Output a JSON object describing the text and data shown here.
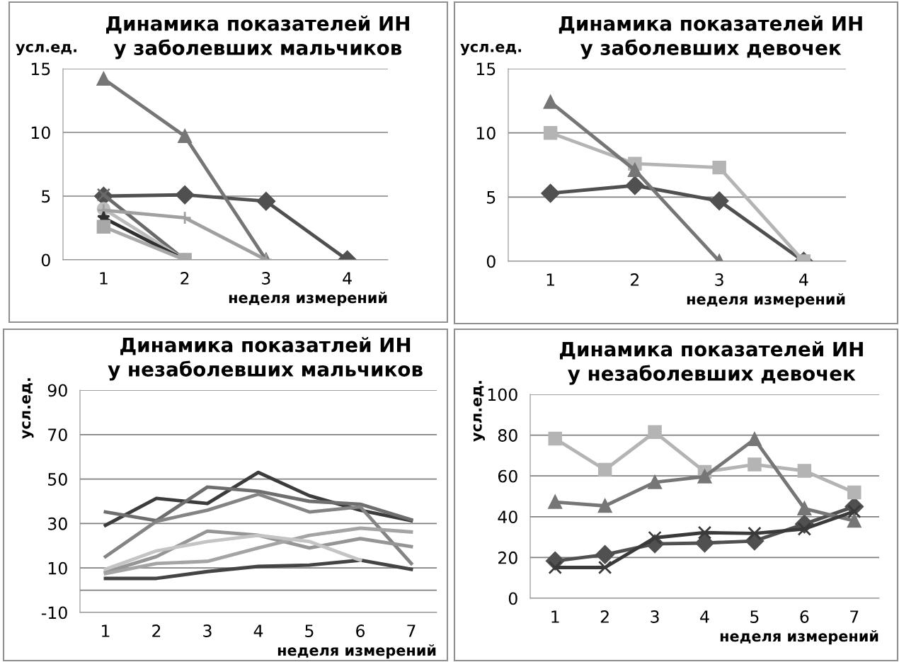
{
  "chart_data": [
    {
      "type": "line",
      "title": "Динамика показателей ИН\nу заболевших мальчиков",
      "ylabel": "усл.ед.",
      "xlabel": "неделя измерений",
      "categories": [
        "1",
        "2",
        "3",
        "4"
      ],
      "ylim": [
        0,
        15
      ],
      "yticks": [
        0,
        5,
        10,
        15
      ],
      "grid": "y",
      "legend": false,
      "line_style": "solid",
      "series": [
        {
          "color": "#505050",
          "marker": "diamond",
          "values": [
            5.0,
            5.1,
            4.6,
            0
          ]
        },
        {
          "color": "#767676",
          "marker": "triangle",
          "values": [
            14.2,
            9.7,
            0,
            null
          ]
        },
        {
          "color": "#6a6a6a",
          "marker": "cross",
          "values": [
            5.1,
            0,
            null,
            null
          ]
        },
        {
          "color": "#bcbcbc",
          "marker": "circle",
          "values": [
            4.0,
            0,
            null,
            null
          ]
        },
        {
          "color": "#a0a0a0",
          "marker": "plus",
          "values": [
            3.9,
            3.3,
            0,
            null
          ]
        },
        {
          "color": "#303030",
          "marker": "star",
          "values": [
            3.3,
            0,
            null,
            null
          ]
        },
        {
          "color": "#a8a8a8",
          "marker": "square",
          "values": [
            2.6,
            0,
            null,
            null
          ]
        }
      ]
    },
    {
      "type": "line",
      "title": "Динамика показателей ИН\nу заболевших девочек",
      "ylabel": "усл.ед.",
      "xlabel": "неделя измерений",
      "categories": [
        "1",
        "2",
        "3",
        "4"
      ],
      "ylim": [
        0,
        15
      ],
      "yticks": [
        0,
        5,
        10,
        15
      ],
      "grid": "y",
      "legend": false,
      "line_style": "solid",
      "series": [
        {
          "color": "#505050",
          "marker": "diamond",
          "values": [
            5.3,
            5.9,
            4.7,
            0
          ]
        },
        {
          "color": "#b4b4b4",
          "marker": "square",
          "values": [
            10.0,
            7.6,
            7.3,
            0
          ]
        },
        {
          "color": "#767676",
          "marker": "triangle",
          "values": [
            12.4,
            7.1,
            0,
            null
          ]
        }
      ]
    },
    {
      "type": "line",
      "title": "Динамика показатлей ИН\nу незаболевших мальчиков",
      "ylabel": "усл.ед.",
      "xlabel": "неделя измерений",
      "categories": [
        "1",
        "2",
        "3",
        "4",
        "5",
        "6",
        "7"
      ],
      "ylim": [
        -10,
        90
      ],
      "yticks": [
        -10,
        10,
        30,
        50,
        70,
        90
      ],
      "grid": "y",
      "legend": false,
      "line_style": "solid",
      "marker": "none",
      "ref_lines": [
        {
          "axis": "y",
          "value": 0,
          "color": "#808080"
        }
      ],
      "series": [
        {
          "color": "#3c3c3c",
          "values": [
            29.2,
            41.3,
            39,
            53,
            42.5,
            36,
            31.3
          ]
        },
        {
          "color": "#6e6e6e",
          "values": [
            35.2,
            31.3,
            46.4,
            44.5,
            40,
            38.7,
            31.7
          ]
        },
        {
          "color": "#848484",
          "values": [
            15.1,
            31,
            36,
            43.2,
            35.2,
            37.5,
            12
          ]
        },
        {
          "color": "#444444",
          "values": [
            5.3,
            5.3,
            8.4,
            10.7,
            11.3,
            13.5,
            9.4
          ]
        },
        {
          "color": "#959595",
          "values": [
            8.1,
            15.1,
            26.6,
            24.7,
            19,
            23.2,
            19.6
          ]
        },
        {
          "color": "#a4a4a4",
          "values": [
            7.5,
            12,
            13,
            19,
            24.7,
            27.9,
            26.2
          ]
        },
        {
          "color": "#c4c4c4",
          "values": [
            9.4,
            17.7,
            21.9,
            24.7,
            21.9,
            13.5,
            null
          ]
        }
      ]
    },
    {
      "type": "line",
      "title": "Динамика показателей ИН\nу незаболевших девочек",
      "ylabel": "усл.ед.",
      "xlabel": "неделя измерений",
      "categories": [
        "1",
        "2",
        "3",
        "4",
        "5",
        "6",
        "7"
      ],
      "ylim": [
        0,
        100
      ],
      "yticks": [
        0,
        20,
        40,
        60,
        80,
        100
      ],
      "grid": "y",
      "legend": false,
      "line_style": "solid",
      "series": [
        {
          "color": "#505050",
          "marker": "diamond",
          "values": [
            18.3,
            21.4,
            26.7,
            27.1,
            28.1,
            36.4,
            45
          ]
        },
        {
          "color": "#b4b4b4",
          "marker": "square",
          "values": [
            78.3,
            63,
            81.5,
            62,
            65.6,
            62.5,
            51.9
          ]
        },
        {
          "color": "#767676",
          "marker": "triangle",
          "values": [
            47.2,
            45.3,
            56.9,
            59.7,
            78,
            44,
            38
          ]
        },
        {
          "color": "#3a3a3a",
          "marker": "cross",
          "values": [
            15.1,
            15.1,
            29.7,
            32.2,
            31.8,
            34,
            42.6
          ]
        }
      ]
    }
  ]
}
